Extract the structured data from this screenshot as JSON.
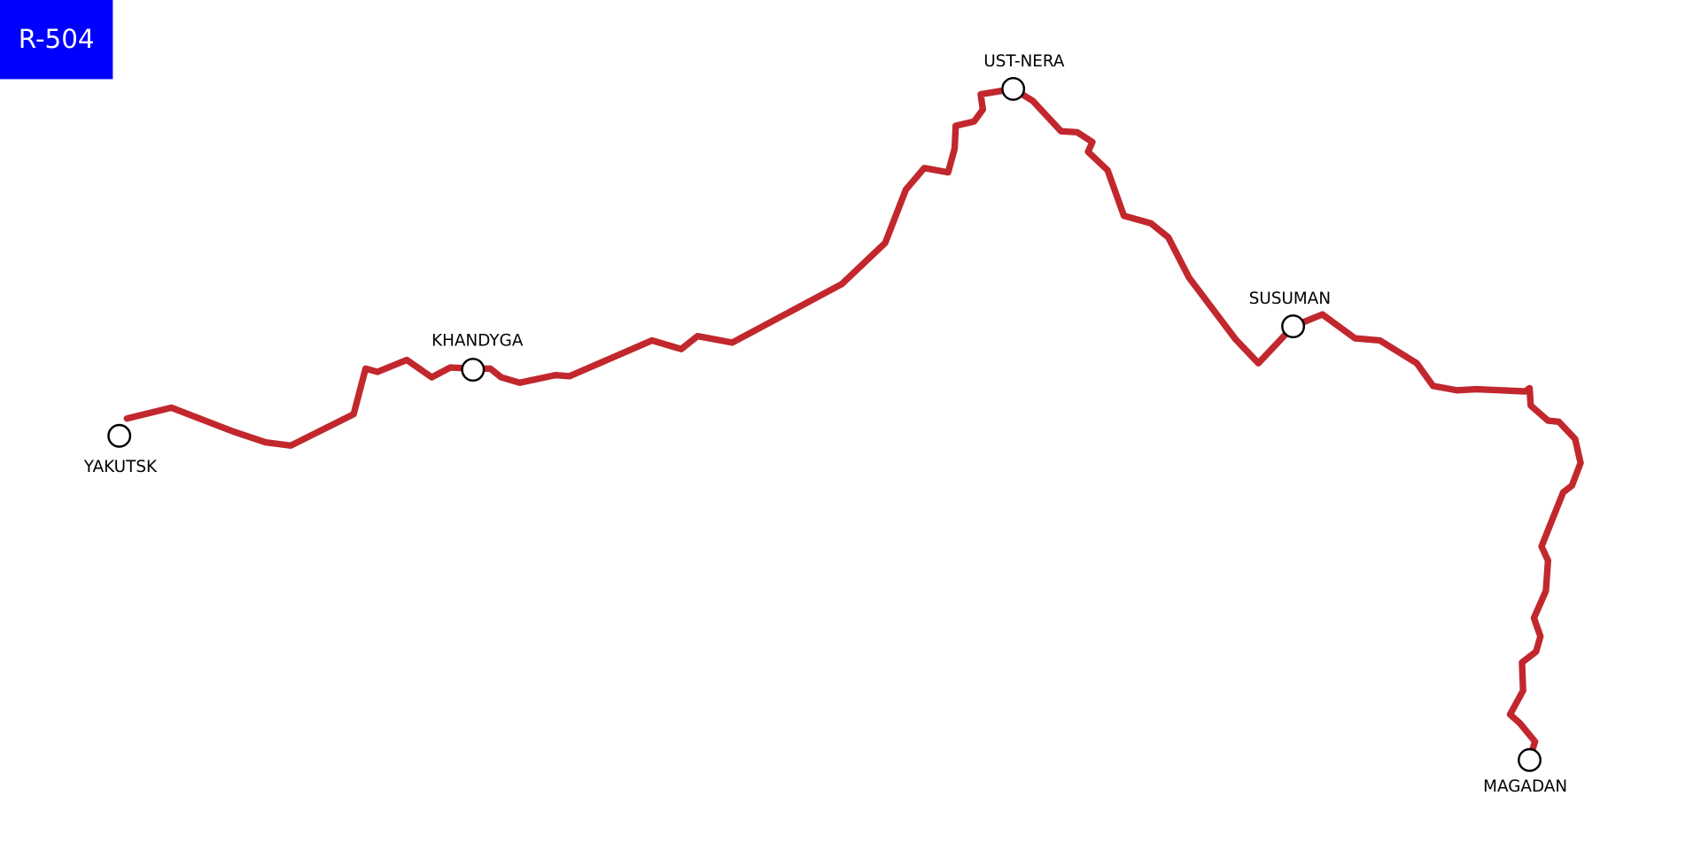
{
  "title": "R-504",
  "nodes": [
    {
      "label": "YAKUTSK"
    },
    {
      "label": "KHANDYGA"
    },
    {
      "label": "UST-NERA"
    },
    {
      "label": "SUSUMAN"
    },
    {
      "label": "MAGADAN"
    }
  ]
}
